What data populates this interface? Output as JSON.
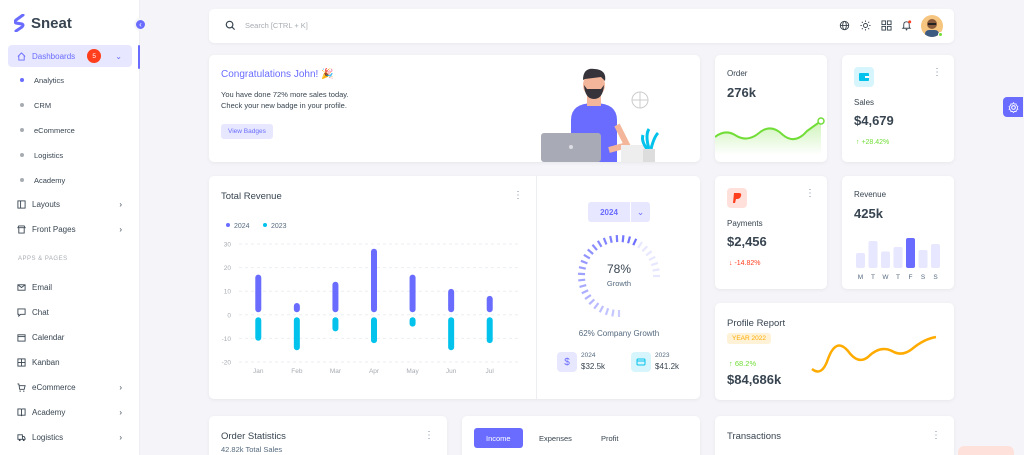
{
  "brand": {
    "name": "Sneat"
  },
  "sidebar": {
    "dashboards": {
      "label": "Dashboards",
      "badge": "5"
    },
    "sub_items": [
      "Analytics",
      "CRM",
      "eCommerce",
      "Logistics",
      "Academy"
    ],
    "items_top": [
      {
        "label": "Layouts",
        "icon": "layout-icon"
      },
      {
        "label": "Front Pages",
        "icon": "store-icon"
      }
    ],
    "section_label": "APPS & PAGES",
    "items_apps": [
      {
        "label": "Email",
        "icon": "mail-icon",
        "chevron": false
      },
      {
        "label": "Chat",
        "icon": "chat-icon",
        "chevron": false
      },
      {
        "label": "Calendar",
        "icon": "calendar-icon",
        "chevron": false
      },
      {
        "label": "Kanban",
        "icon": "grid-icon",
        "chevron": false
      },
      {
        "label": "eCommerce",
        "icon": "cart-icon",
        "chevron": true
      },
      {
        "label": "Academy",
        "icon": "book-icon",
        "chevron": true
      },
      {
        "label": "Logistics",
        "icon": "truck-icon",
        "chevron": true
      }
    ]
  },
  "search": {
    "placeholder": "Search [CTRL + K]"
  },
  "navbar": {
    "icons": [
      "globe-icon",
      "sun-icon",
      "apps-icon",
      "bell-icon"
    ]
  },
  "congrats": {
    "title": "Congratulations John! 🎉",
    "line1": "You have done 72% more sales today.",
    "line2": "Check your new badge in your profile.",
    "button": "View Badges"
  },
  "order": {
    "label": "Order",
    "value": "276k"
  },
  "sales": {
    "label": "Sales",
    "value": "$4,679",
    "change": "+28.42%"
  },
  "payments": {
    "label": "Payments",
    "value": "$2,456",
    "change": "-14.82%"
  },
  "revenue_small": {
    "label": "Revenue",
    "value": "425k",
    "days": [
      "M",
      "T",
      "W",
      "T",
      "F",
      "S",
      "S"
    ],
    "bars": [
      0.5,
      0.9,
      0.55,
      0.7,
      1.0,
      0.6,
      0.8
    ]
  },
  "profile": {
    "title": "Profile Report",
    "year": "YEAR 2022",
    "change": "68.2%",
    "value": "$84,686k"
  },
  "total_revenue": {
    "title": "Total Revenue",
    "year_select": "2024",
    "growth_percent": "78%",
    "growth_label": "Growth",
    "company_growth": "62% Company Growth",
    "stat1": {
      "year": "2024",
      "value": "$32.5k"
    },
    "stat2": {
      "year": "2023",
      "value": "$41.2k"
    }
  },
  "chart_data": {
    "type": "bar",
    "categories": [
      "Jan",
      "Feb",
      "Mar",
      "Apr",
      "May",
      "Jun",
      "Jul"
    ],
    "series": [
      {
        "name": "2024",
        "values": [
          17,
          5,
          14,
          28,
          17,
          11,
          8
        ]
      },
      {
        "name": "2023",
        "values": [
          -11,
          -15,
          -7,
          -12,
          -5,
          -15,
          -12
        ]
      }
    ],
    "ylim": [
      -20,
      30
    ],
    "yticks": [
      30,
      20,
      10,
      0,
      -10,
      -20
    ],
    "colors": [
      "#696cff",
      "#03c3ec"
    ],
    "legend": "top-left"
  },
  "order_stats": {
    "title": "Order Statistics",
    "subtitle": "42.82k Total Sales"
  },
  "income_tabs": [
    "Income",
    "Expenses",
    "Profit"
  ],
  "transactions": {
    "title": "Transactions"
  }
}
